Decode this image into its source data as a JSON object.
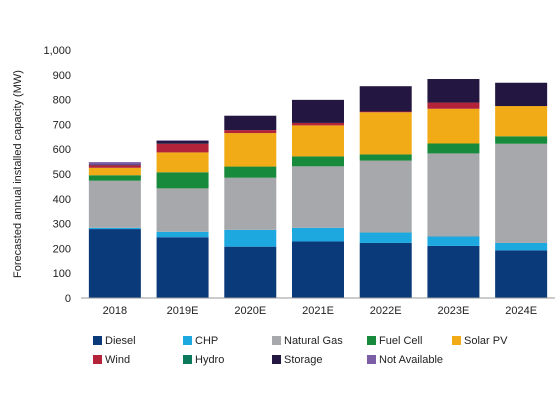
{
  "chart_data": {
    "type": "bar",
    "stacked": true,
    "ylabel": "Forecasted annual installed capacity (MW)",
    "ylim": [
      0,
      1000
    ],
    "yticks": [
      0,
      100,
      200,
      300,
      400,
      500,
      600,
      700,
      800,
      900,
      1000
    ],
    "ytick_labels": [
      "0",
      "100",
      "200",
      "300",
      "400",
      "500",
      "600",
      "700",
      "800",
      "900",
      "1,000"
    ],
    "grid": false,
    "legend_position": "bottom",
    "categories": [
      "2018",
      "2019E",
      "2020E",
      "2021E",
      "2022E",
      "2023E",
      "2024E"
    ],
    "series": [
      {
        "name": "Diesel",
        "color": "#0b3a7a",
        "values": [
          278,
          245,
          207,
          228,
          222,
          210,
          192
        ]
      },
      {
        "name": "CHP",
        "color": "#1ea8e0",
        "values": [
          5,
          22,
          68,
          55,
          42,
          38,
          30
        ]
      },
      {
        "name": "Natural Gas",
        "color": "#a7a8ab",
        "values": [
          190,
          175,
          210,
          248,
          290,
          335,
          400
        ]
      },
      {
        "name": "Fuel Cell",
        "color": "#188a3c",
        "values": [
          22,
          65,
          45,
          40,
          25,
          40,
          30
        ]
      },
      {
        "name": "Solar PV",
        "color": "#f0ab16",
        "values": [
          30,
          80,
          135,
          125,
          170,
          140,
          122
        ]
      },
      {
        "name": "Wind",
        "color": "#b3243a",
        "values": [
          10,
          35,
          12,
          10,
          3,
          25,
          0
        ]
      },
      {
        "name": "Hydro",
        "color": "#0b7a5c",
        "values": [
          0,
          0,
          0,
          0,
          0,
          0,
          0
        ]
      },
      {
        "name": "Storage",
        "color": "#231640",
        "values": [
          3,
          12,
          58,
          93,
          102,
          95,
          94
        ]
      },
      {
        "name": "Not Available",
        "color": "#7b5ea6",
        "values": [
          10,
          2,
          0,
          0,
          0,
          0,
          0
        ]
      }
    ]
  }
}
